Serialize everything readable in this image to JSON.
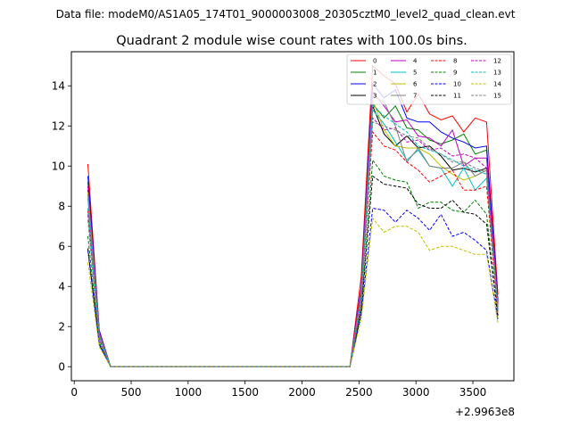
{
  "header": {
    "data_file": "Data file: modeM0/AS1A05_174T01_9000003008_20305cztM0_level2_quad_clean.evt"
  },
  "chart_data": {
    "type": "line",
    "title": "Quadrant 2 module wise count rates with 100.0s bins.",
    "xlabel": "",
    "ylabel": "",
    "x_offset_label": "+2.9963e8",
    "xlim": [
      -25,
      3860
    ],
    "ylim": [
      -0.7,
      15.7
    ],
    "x_ticks": [
      0,
      500,
      1000,
      1500,
      2000,
      2500,
      3000,
      3500
    ],
    "y_ticks": [
      0,
      2,
      4,
      6,
      8,
      10,
      12,
      14
    ],
    "x": [
      120,
      220,
      320,
      420,
      520,
      620,
      720,
      820,
      920,
      1020,
      1120,
      1220,
      1320,
      1420,
      1520,
      1620,
      1720,
      1820,
      1920,
      2020,
      2120,
      2220,
      2320,
      2420,
      2520,
      2620,
      2720,
      2820,
      2920,
      3020,
      3120,
      3220,
      3320,
      3420,
      3520,
      3620,
      3720
    ],
    "series": [
      {
        "name": "0",
        "color": "#ff0000",
        "dash": "solid",
        "values": [
          10.1,
          1.8,
          0,
          0,
          0,
          0,
          0,
          0,
          0,
          0,
          0,
          0,
          0,
          0,
          0,
          0,
          0,
          0,
          0,
          0,
          0,
          0,
          0,
          0,
          4.5,
          15.0,
          14.5,
          14.1,
          12.7,
          13.6,
          12.6,
          12.3,
          12.5,
          11.7,
          12.4,
          12.2,
          3.6
        ]
      },
      {
        "name": "1",
        "color": "#008000",
        "dash": "solid",
        "values": [
          9.2,
          1.7,
          0,
          0,
          0,
          0,
          0,
          0,
          0,
          0,
          0,
          0,
          0,
          0,
          0,
          0,
          0,
          0,
          0,
          0,
          0,
          0,
          0,
          0,
          3.8,
          13.1,
          12.4,
          13.0,
          11.9,
          11.8,
          11.3,
          11.1,
          11.3,
          11.6,
          10.6,
          10.8,
          3.2
        ]
      },
      {
        "name": "2",
        "color": "#0000ff",
        "dash": "solid",
        "values": [
          9.5,
          1.8,
          0,
          0,
          0,
          0,
          0,
          0,
          0,
          0,
          0,
          0,
          0,
          0,
          0,
          0,
          0,
          0,
          0,
          0,
          0,
          0,
          0,
          0,
          4.0,
          14.1,
          13.4,
          13.8,
          12.4,
          12.2,
          12.2,
          11.7,
          11.4,
          11.2,
          10.9,
          11.0,
          3.3
        ]
      },
      {
        "name": "3",
        "color": "#000000",
        "dash": "solid",
        "values": [
          8.8,
          1.6,
          0,
          0,
          0,
          0,
          0,
          0,
          0,
          0,
          0,
          0,
          0,
          0,
          0,
          0,
          0,
          0,
          0,
          0,
          0,
          0,
          0,
          0,
          3.7,
          13.0,
          11.6,
          11.0,
          11.5,
          10.9,
          11.0,
          10.5,
          9.8,
          9.9,
          9.7,
          9.9,
          3.0
        ]
      },
      {
        "name": "4",
        "color": "#bf00bf",
        "dash": "solid",
        "values": [
          9.0,
          1.7,
          0,
          0,
          0,
          0,
          0,
          0,
          0,
          0,
          0,
          0,
          0,
          0,
          0,
          0,
          0,
          0,
          0,
          0,
          0,
          0,
          0,
          0,
          3.9,
          13.7,
          13.0,
          12.2,
          12.3,
          11.5,
          11.4,
          11.0,
          11.8,
          10.0,
          10.4,
          10.4,
          3.1
        ]
      },
      {
        "name": "5",
        "color": "#00bfbf",
        "dash": "solid",
        "values": [
          8.4,
          1.5,
          0,
          0,
          0,
          0,
          0,
          0,
          0,
          0,
          0,
          0,
          0,
          0,
          0,
          0,
          0,
          0,
          0,
          0,
          0,
          0,
          0,
          0,
          3.5,
          12.8,
          12.1,
          11.2,
          10.3,
          10.8,
          10.0,
          9.9,
          9.0,
          9.9,
          8.8,
          9.4,
          2.8
        ]
      },
      {
        "name": "6",
        "color": "#bfbf00",
        "dash": "solid",
        "values": [
          8.7,
          1.6,
          0,
          0,
          0,
          0,
          0,
          0,
          0,
          0,
          0,
          0,
          0,
          0,
          0,
          0,
          0,
          0,
          0,
          0,
          0,
          0,
          0,
          0,
          3.6,
          13.3,
          11.8,
          11.0,
          10.9,
          10.9,
          10.6,
          10.0,
          9.6,
          9.3,
          9.5,
          9.8,
          2.9
        ]
      },
      {
        "name": "7",
        "color": "#808080",
        "dash": "solid",
        "values": [
          8.6,
          1.6,
          0,
          0,
          0,
          0,
          0,
          0,
          0,
          0,
          0,
          0,
          0,
          0,
          0,
          0,
          0,
          0,
          0,
          0,
          0,
          0,
          0,
          0,
          3.6,
          13.5,
          13.2,
          12.0,
          10.2,
          10.9,
          10.0,
          9.9,
          9.9,
          10.2,
          9.5,
          9.8,
          2.9
        ]
      },
      {
        "name": "8",
        "color": "#ff0000",
        "dash": "dashed",
        "values": [
          7.8,
          1.4,
          0,
          0,
          0,
          0,
          0,
          0,
          0,
          0,
          0,
          0,
          0,
          0,
          0,
          0,
          0,
          0,
          0,
          0,
          0,
          0,
          0,
          0,
          3.3,
          11.7,
          11.0,
          10.8,
          10.2,
          9.8,
          9.2,
          9.5,
          9.8,
          8.8,
          8.8,
          9.0,
          2.6
        ]
      },
      {
        "name": "9",
        "color": "#008000",
        "dash": "dashed",
        "values": [
          6.5,
          1.2,
          0,
          0,
          0,
          0,
          0,
          0,
          0,
          0,
          0,
          0,
          0,
          0,
          0,
          0,
          0,
          0,
          0,
          0,
          0,
          0,
          0,
          0,
          2.9,
          10.3,
          9.5,
          9.3,
          9.2,
          7.9,
          8.2,
          8.2,
          7.8,
          7.7,
          8.3,
          7.6,
          2.4
        ]
      },
      {
        "name": "10",
        "color": "#0000ff",
        "dash": "dashed",
        "values": [
          5.8,
          1.1,
          0,
          0,
          0,
          0,
          0,
          0,
          0,
          0,
          0,
          0,
          0,
          0,
          0,
          0,
          0,
          0,
          0,
          0,
          0,
          0,
          0,
          0,
          2.6,
          7.9,
          7.8,
          7.2,
          7.8,
          7.4,
          6.8,
          7.6,
          6.5,
          6.7,
          6.3,
          5.8,
          2.3
        ]
      },
      {
        "name": "11",
        "color": "#000000",
        "dash": "dashed",
        "values": [
          5.9,
          1.1,
          0,
          0,
          0,
          0,
          0,
          0,
          0,
          0,
          0,
          0,
          0,
          0,
          0,
          0,
          0,
          0,
          0,
          0,
          0,
          0,
          0,
          0,
          2.8,
          9.5,
          9.1,
          9.0,
          8.9,
          8.1,
          7.9,
          7.9,
          8.3,
          7.7,
          7.6,
          7.1,
          2.5
        ]
      },
      {
        "name": "12",
        "color": "#bf00bf",
        "dash": "dashed",
        "values": [
          7.6,
          1.4,
          0,
          0,
          0,
          0,
          0,
          0,
          0,
          0,
          0,
          0,
          0,
          0,
          0,
          0,
          0,
          0,
          0,
          0,
          0,
          0,
          0,
          0,
          3.2,
          12.4,
          11.8,
          11.9,
          11.2,
          11.3,
          10.8,
          10.9,
          10.5,
          10.6,
          10.4,
          9.9,
          2.7
        ]
      },
      {
        "name": "13",
        "color": "#00bfbf",
        "dash": "dashed",
        "values": [
          7.9,
          1.5,
          0,
          0,
          0,
          0,
          0,
          0,
          0,
          0,
          0,
          0,
          0,
          0,
          0,
          0,
          0,
          0,
          0,
          0,
          0,
          0,
          0,
          0,
          3.4,
          13.0,
          12.5,
          12.1,
          11.7,
          11.0,
          10.8,
          10.6,
          10.3,
          10.0,
          9.8,
          9.6,
          2.8
        ]
      },
      {
        "name": "14",
        "color": "#bfbf00",
        "dash": "dashed",
        "values": [
          5.2,
          1.0,
          0,
          0,
          0,
          0,
          0,
          0,
          0,
          0,
          0,
          0,
          0,
          0,
          0,
          0,
          0,
          0,
          0,
          0,
          0,
          0,
          0,
          0,
          2.4,
          7.4,
          6.7,
          7.0,
          7.0,
          6.7,
          5.8,
          6.0,
          6.0,
          5.8,
          5.6,
          5.6,
          2.2
        ]
      },
      {
        "name": "15",
        "color": "#808080",
        "dash": "dashed",
        "values": [
          7.3,
          1.3,
          0,
          0,
          0,
          0,
          0,
          0,
          0,
          0,
          0,
          0,
          0,
          0,
          0,
          0,
          0,
          0,
          0,
          0,
          0,
          0,
          0,
          0,
          3.1,
          12.2,
          12.0,
          11.8,
          11.5,
          11.4,
          10.9,
          10.6,
          10.2,
          10.2,
          9.9,
          9.7,
          2.7
        ]
      }
    ]
  }
}
